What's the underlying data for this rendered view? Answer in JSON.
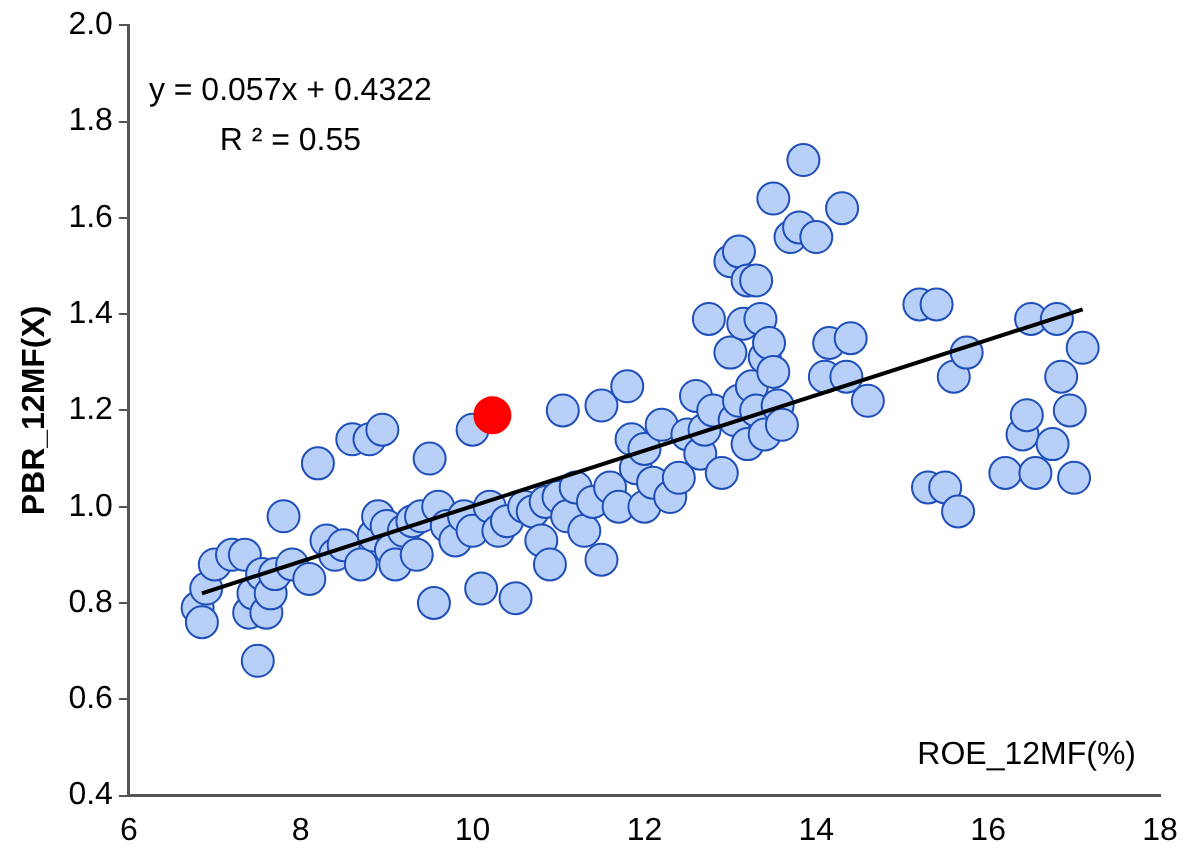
{
  "chart_data": {
    "type": "scatter",
    "xlabel": "ROE_12MF(%)",
    "ylabel": "PBR_12MF(X)",
    "annotations": [
      "y = 0.057x + 0.4322",
      "R ² = 0.55"
    ],
    "xlim": [
      6,
      18
    ],
    "xticks": [
      6,
      8,
      10,
      12,
      14,
      16,
      18
    ],
    "ylim": [
      0.4,
      2.0
    ],
    "yticks": [
      0.4,
      0.6,
      0.8,
      {
        "value": 1.0,
        "label": "1.0"
      },
      1.2,
      1.4,
      1.6,
      1.8,
      {
        "value": 2.0,
        "label": "2.0"
      }
    ],
    "grid": false,
    "legend": false,
    "series": [
      {
        "marker": "circle",
        "color": "#b8cff7",
        "x": [
          6.8,
          6.85,
          6.9,
          7.0,
          7.2,
          7.35,
          7.4,
          7.45,
          7.5,
          7.55,
          7.6,
          7.65,
          7.7,
          7.8,
          7.9,
          8.1,
          8.2,
          8.3,
          8.4,
          8.5,
          8.6,
          8.7,
          8.8,
          8.85,
          8.9,
          8.95,
          9.0,
          9.05,
          9.1,
          9.2,
          9.3,
          9.35,
          9.4,
          9.5,
          9.55,
          9.6,
          9.7,
          9.8,
          9.9,
          10.0,
          10.0,
          10.1,
          10.2,
          10.3,
          10.4,
          10.5,
          10.6,
          10.7,
          10.8,
          10.85,
          10.9,
          11.0,
          11.05,
          11.1,
          11.2,
          11.3,
          11.4,
          11.5,
          11.5,
          11.6,
          11.7,
          11.8,
          11.85,
          11.9,
          12.0,
          12.0,
          12.1,
          12.2,
          12.3,
          12.4,
          12.5,
          12.6,
          12.65,
          12.7,
          12.75,
          12.8,
          12.9,
          13.0,
          13.0,
          13.05,
          13.1,
          13.1,
          13.15,
          13.2,
          13.2,
          13.25,
          13.3,
          13.3,
          13.35,
          13.4,
          13.4,
          13.45,
          13.5,
          13.5,
          13.55,
          13.6,
          13.7,
          13.8,
          13.85,
          14.0,
          14.1,
          14.15,
          14.3,
          14.35,
          14.4,
          14.6,
          15.2,
          15.3,
          15.4,
          15.5,
          15.6,
          15.65,
          15.75,
          16.2,
          16.4,
          16.45,
          16.5,
          16.55,
          16.75,
          16.8,
          16.85,
          16.95,
          17.0,
          17.1
        ],
        "values": [
          0.79,
          0.76,
          0.83,
          0.88,
          0.9,
          0.9,
          0.78,
          0.82,
          0.68,
          0.86,
          0.78,
          0.82,
          0.86,
          0.98,
          0.88,
          0.85,
          1.09,
          0.93,
          0.9,
          0.92,
          1.14,
          0.88,
          1.14,
          0.94,
          0.98,
          1.16,
          0.96,
          0.91,
          0.88,
          0.95,
          0.97,
          0.9,
          0.98,
          1.1,
          0.8,
          1.0,
          0.96,
          0.93,
          0.98,
          0.95,
          1.16,
          0.83,
          1.0,
          0.95,
          0.97,
          0.81,
          1.0,
          0.99,
          0.93,
          1.01,
          0.88,
          1.02,
          1.2,
          0.98,
          1.04,
          0.95,
          1.01,
          1.21,
          0.89,
          1.04,
          1.0,
          1.25,
          1.14,
          1.08,
          1.12,
          1.0,
          1.05,
          1.17,
          1.02,
          1.06,
          1.15,
          1.23,
          1.11,
          1.16,
          1.39,
          1.2,
          1.07,
          1.51,
          1.32,
          1.18,
          1.53,
          1.22,
          1.38,
          1.47,
          1.13,
          1.25,
          1.2,
          1.47,
          1.39,
          1.31,
          1.15,
          1.34,
          1.28,
          1.64,
          1.21,
          1.17,
          1.56,
          1.58,
          1.72,
          1.56,
          1.27,
          1.34,
          1.62,
          1.27,
          1.35,
          1.22,
          1.42,
          1.04,
          1.42,
          1.04,
          1.27,
          0.99,
          1.32,
          1.07,
          1.15,
          1.19,
          1.39,
          1.07,
          1.13,
          1.39,
          1.27,
          1.2,
          1.06,
          1.33
        ]
      },
      {
        "type": "line",
        "color": "#000000",
        "x": [
          6.85,
          17.1
        ],
        "values": [
          0.82,
          1.41
        ]
      },
      {
        "marker": "circle",
        "color": "#ff0000",
        "x": [
          10.23
        ],
        "values": [
          1.19
        ]
      }
    ]
  }
}
